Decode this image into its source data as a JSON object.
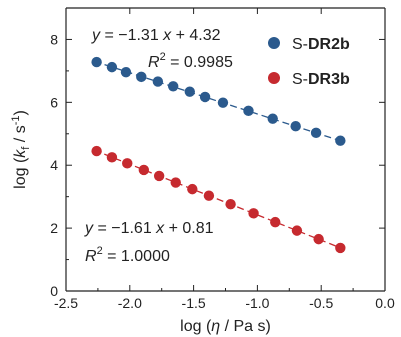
{
  "chart_data": {
    "type": "scatter",
    "xlabel": "log (η / Pa s)",
    "ylabel": "log (k_f / s⁻¹)",
    "xlim": [
      -2.5,
      0.0
    ],
    "ylim": [
      0,
      9
    ],
    "x_ticks": [
      "-2.5",
      "-2.0",
      "-1.5",
      "-1.0",
      "-0.5",
      "0.0"
    ],
    "y_ticks": [
      "0",
      "2",
      "4",
      "6",
      "8"
    ],
    "x_tick_values": [
      -2.5,
      -2.0,
      -1.5,
      -1.0,
      -0.5,
      0.0
    ],
    "y_tick_values": [
      0,
      2,
      4,
      6,
      8
    ],
    "legend_position": "top-right",
    "series": [
      {
        "name_prefix": "S-",
        "name_bold": "DR2b",
        "color": "#2b5a8d",
        "fit": {
          "slope": -1.31,
          "intercept": 4.32
        },
        "equation": "y = −1.31 x + 4.32",
        "r2_label": "R",
        "r2_value": "= 0.9985",
        "x": [
          -2.26,
          -2.14,
          -2.03,
          -1.91,
          -1.78,
          -1.66,
          -1.53,
          -1.41,
          -1.27,
          -1.07,
          -0.88,
          -0.7,
          -0.54,
          -0.35
        ],
        "y": [
          7.28,
          7.12,
          6.96,
          6.81,
          6.66,
          6.51,
          6.34,
          6.17,
          5.99,
          5.73,
          5.48,
          5.24,
          5.03,
          4.78
        ]
      },
      {
        "name_prefix": "S-",
        "name_bold": "DR3b",
        "color": "#c62a2f",
        "fit": {
          "slope": -1.61,
          "intercept": 0.81
        },
        "equation": "y = −1.61 x + 0.81",
        "r2_label": "R",
        "r2_value": "= 1.0000",
        "x": [
          -2.26,
          -2.14,
          -2.02,
          -1.89,
          -1.77,
          -1.64,
          -1.51,
          -1.38,
          -1.21,
          -1.03,
          -0.86,
          -0.69,
          -0.52,
          -0.35
        ],
        "y": [
          4.45,
          4.25,
          4.06,
          3.85,
          3.66,
          3.45,
          3.24,
          3.03,
          2.76,
          2.47,
          2.19,
          1.92,
          1.65,
          1.37
        ]
      }
    ]
  }
}
